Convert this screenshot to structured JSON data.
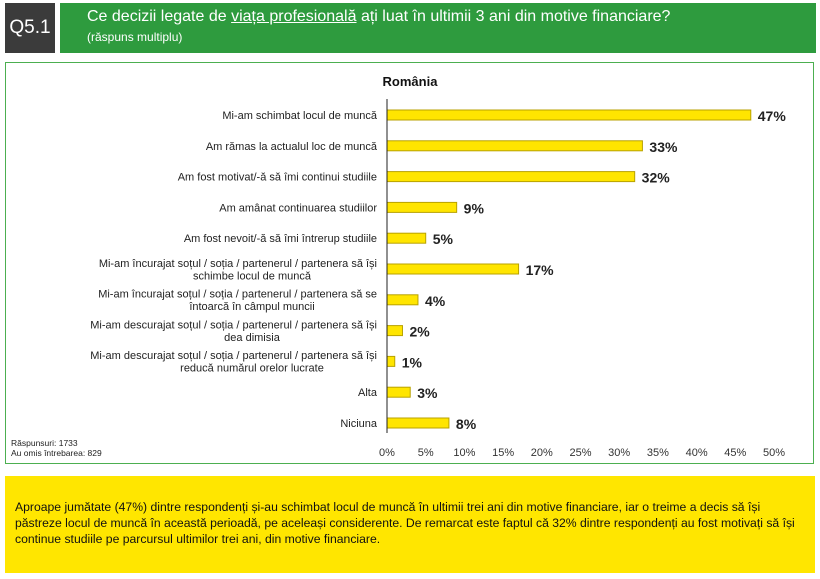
{
  "question": {
    "number": "Q5.1",
    "title_before": "Ce decizii legate de ",
    "title_underlined": "viața profesională",
    "title_after": " ați luat în ultimii 3 ani din motive financiare?",
    "subtitle": "(răspuns multiplu)"
  },
  "colors": {
    "header": "#2e9b3e",
    "bar": "#ffe500",
    "bar_border": "#b8a200",
    "note_bg": "#ffe600",
    "qbox": "#3b3b3b"
  },
  "chart_data": {
    "type": "bar",
    "orientation": "horizontal",
    "title": "România",
    "categories": [
      [
        "Mi-am schimbat locul de muncă"
      ],
      [
        "Am rămas la actualul loc de muncă"
      ],
      [
        "Am fost motivat/-ă să îmi continui studiile"
      ],
      [
        "Am amânat continuarea studiilor"
      ],
      [
        "Am fost nevoit/-ă să îmi întrerup studiile"
      ],
      [
        "Mi-am încurajat soțul / soția / partenerul / partenera să își",
        "schimbe locul de muncă"
      ],
      [
        "Mi-am încurajat soțul / soția / partenerul / partenera să se",
        "întoarcă în câmpul muncii"
      ],
      [
        "Mi-am descurajat soțul / soția / partenerul / partenera să își",
        "dea dimisia"
      ],
      [
        "Mi-am descurajat soțul / soția / partenerul / partenera să își",
        "reducă numărul orelor lucrate"
      ],
      [
        "Alta"
      ],
      [
        "Niciuna"
      ]
    ],
    "values": [
      47,
      33,
      32,
      9,
      5,
      17,
      4,
      2,
      1,
      3,
      8
    ],
    "data_labels": [
      "47%",
      "33%",
      "32%",
      "9%",
      "5%",
      "17%",
      "4%",
      "2%",
      "1%",
      "3%",
      "8%"
    ],
    "xlim": [
      0,
      50
    ],
    "xticks": [
      "0%",
      "5%",
      "10%",
      "15%",
      "20%",
      "25%",
      "30%",
      "35%",
      "40%",
      "45%",
      "50%"
    ],
    "grid": false,
    "footnotes": [
      "Răspunsuri: 1733",
      "Au omis întrebarea: 829"
    ]
  },
  "note": "Aproape jumătate (47%) dintre respondenți și-au schimbat locul de muncă în ultimii trei ani din motive financiare, iar o treime a decis să își păstreze locul de muncă în această perioadă, pe aceleași considerente. De remarcat este faptul că 32% dintre respondenți au fost motivați să își continue studiile pe parcursul ultimilor trei ani, din motive financiare."
}
